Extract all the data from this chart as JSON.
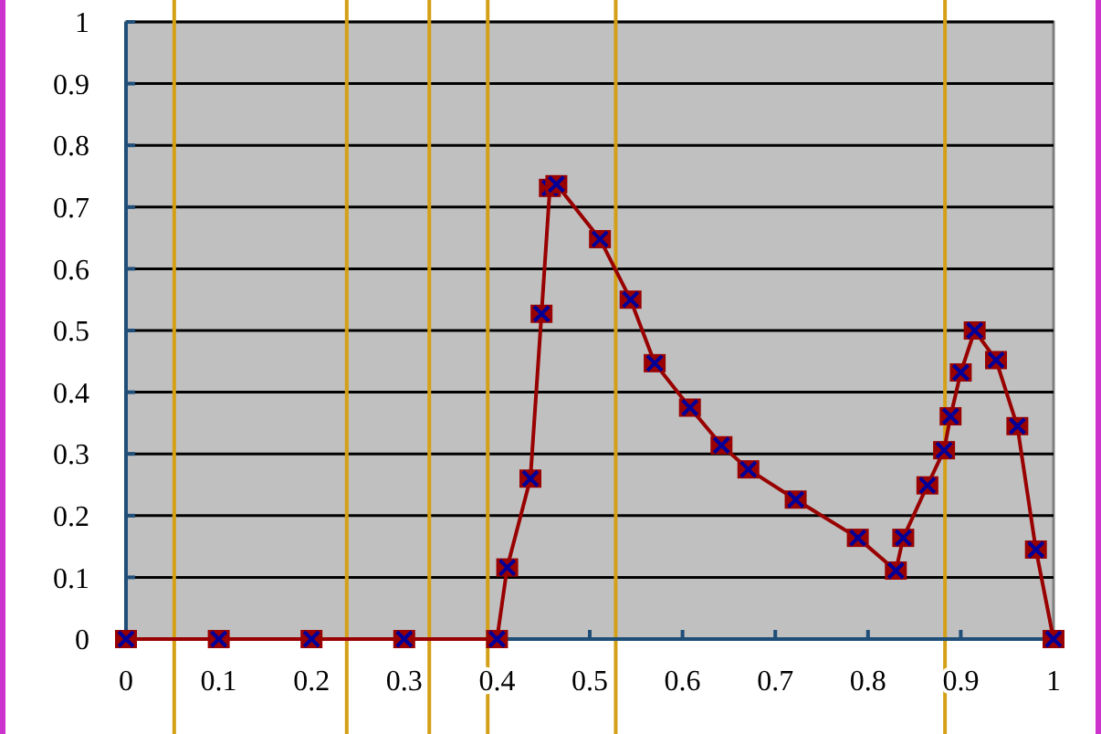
{
  "chart_data": {
    "type": "line",
    "x": [
      0,
      0.1,
      0.2,
      0.3,
      0.4,
      0.411,
      0.436,
      0.448,
      0.457,
      0.464,
      0.511,
      0.544,
      0.57,
      0.608,
      0.642,
      0.671,
      0.722,
      0.789,
      0.83,
      0.838,
      0.864,
      0.882,
      0.889,
      0.9,
      0.915,
      0.938,
      0.961,
      0.981,
      1
    ],
    "series": [
      {
        "color": "#990000",
        "values": [
          0,
          0,
          0,
          0,
          0,
          0.116,
          0.26,
          0.527,
          0.731,
          0.737,
          0.648,
          0.55,
          0.447,
          0.375,
          0.314,
          0.275,
          0.226,
          0.164,
          0.111,
          0.164,
          0.249,
          0.306,
          0.361,
          0.432,
          0.5,
          0.452,
          0.345,
          0.145,
          0
        ]
      }
    ],
    "xlim": [
      0,
      1
    ],
    "ylim": [
      0,
      1
    ],
    "xticks": [
      0,
      0.1,
      0.2,
      0.3,
      0.4,
      0.5,
      0.6,
      0.7,
      0.8,
      0.9,
      1
    ],
    "yticks": [
      0,
      0.1,
      0.2,
      0.3,
      0.4,
      0.5,
      0.6,
      0.7,
      0.8,
      0.9,
      1
    ],
    "grid": "y",
    "marker": "square",
    "line_style": "solid",
    "ref_lines": [
      {
        "axis": "x",
        "value": 0.052,
        "color": "#d4a017"
      },
      {
        "axis": "x",
        "value": 0.238,
        "color": "#d4a017"
      },
      {
        "axis": "x",
        "value": 0.327,
        "color": "#d4a017"
      },
      {
        "axis": "x",
        "value": 0.39,
        "color": "#d4a017"
      },
      {
        "axis": "x",
        "value": 0.528,
        "color": "#d4a017"
      },
      {
        "axis": "x",
        "value": 0.883,
        "color": "#d4a017"
      }
    ]
  }
}
